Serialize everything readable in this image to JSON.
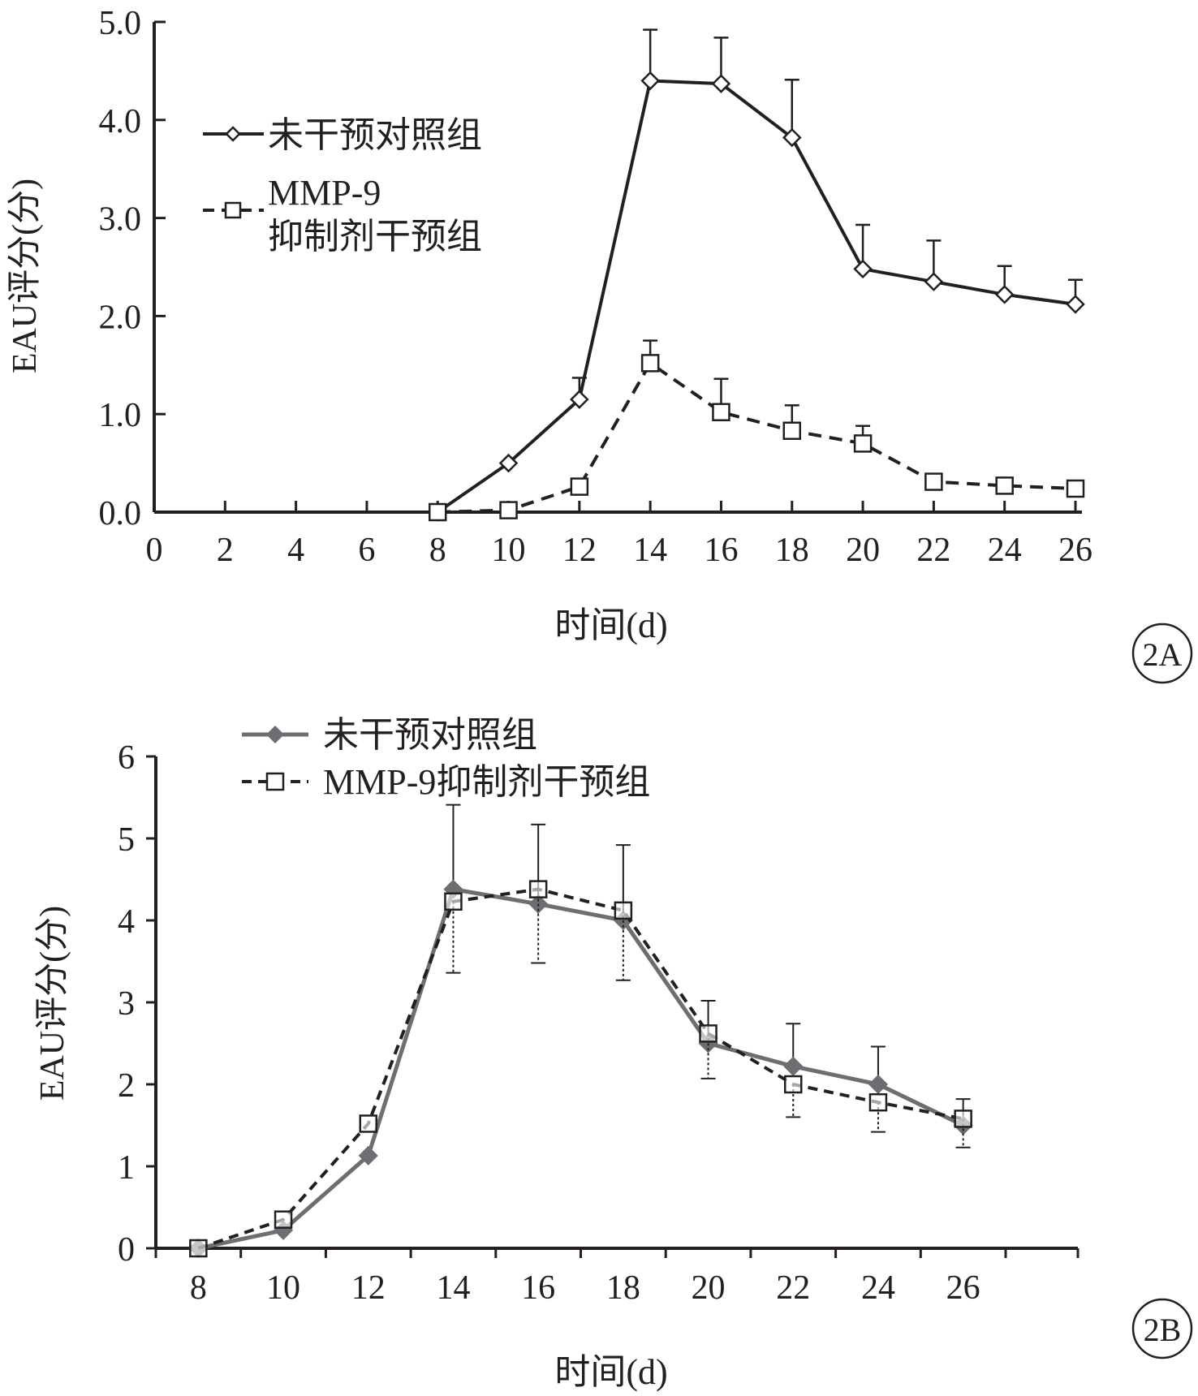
{
  "chart_data": [
    {
      "type": "line",
      "panel": "2A",
      "xlabel": "时间(d)",
      "ylabel": "EAU评分(分)",
      "ylim": [
        0,
        5
      ],
      "xlim": [
        0,
        26
      ],
      "x_ticks": [
        "0",
        "2",
        "4",
        "6",
        "8",
        "10",
        "12",
        "14",
        "16",
        "18",
        "20",
        "22",
        "24",
        "26"
      ],
      "y_ticks": [
        "0.0",
        "1.0",
        "2.0",
        "3.0",
        "4.0",
        "5.0"
      ],
      "legend": {
        "placement": "top-left"
      },
      "series": [
        {
          "name": "未干预对照组",
          "color": "#231f20",
          "style": "solid",
          "marker": "diamond-open",
          "x": [
            8,
            10,
            12,
            14,
            16,
            18,
            20,
            22,
            24,
            26
          ],
          "values": [
            0.0,
            0.5,
            1.15,
            4.4,
            4.37,
            3.82,
            2.48,
            2.35,
            2.22,
            2.12
          ],
          "error": [
            0,
            0,
            0.22,
            0.52,
            0.47,
            0.59,
            0.45,
            0.42,
            0.29,
            0.25
          ]
        },
        {
          "name": "MMP-9",
          "name_line2": "抑制剂干预组",
          "color": "#231f20",
          "style": "dashed",
          "marker": "square-open",
          "x": [
            8,
            10,
            12,
            14,
            16,
            18,
            20,
            22,
            24,
            26
          ],
          "values": [
            0.0,
            0.02,
            0.26,
            1.52,
            1.02,
            0.83,
            0.7,
            0.31,
            0.27,
            0.24
          ],
          "error": [
            0,
            0,
            0,
            0.23,
            0.34,
            0.26,
            0.18,
            0.01,
            0.01,
            0.01
          ]
        }
      ],
      "panel_label": "2A"
    },
    {
      "type": "line",
      "panel": "2B",
      "xlabel": "时间(d)",
      "ylabel": "EAU评分(分)",
      "ylim": [
        0,
        6
      ],
      "categories": [
        "8",
        "10",
        "12",
        "14",
        "16",
        "18",
        "20",
        "22",
        "24",
        "26"
      ],
      "y_ticks": [
        "0",
        "1",
        "2",
        "3",
        "4",
        "5",
        "6"
      ],
      "legend": {
        "placement": "top"
      },
      "series": [
        {
          "name": "未干预对照组",
          "color": "#6d6e71",
          "style": "solid",
          "marker": "diamond-filled",
          "values": [
            0.0,
            0.22,
            1.13,
            4.38,
            4.2,
            4.0,
            2.5,
            2.22,
            2.0,
            1.5
          ],
          "error": [
            0,
            0,
            0,
            1.03,
            0.97,
            0.92,
            0.52,
            0.52,
            0.46,
            0.32
          ]
        },
        {
          "name": "MMP-9抑制剂干预组",
          "color": "#231f20",
          "style": "dashed",
          "marker": "square-open",
          "values": [
            0.0,
            0.35,
            1.52,
            4.23,
            4.38,
            4.12,
            2.62,
            2.0,
            1.78,
            1.58
          ],
          "error": [
            0,
            0,
            0,
            0.87,
            0.9,
            0.85,
            0.55,
            0.4,
            0.36,
            0.35
          ]
        }
      ],
      "panel_label": "2B"
    }
  ]
}
